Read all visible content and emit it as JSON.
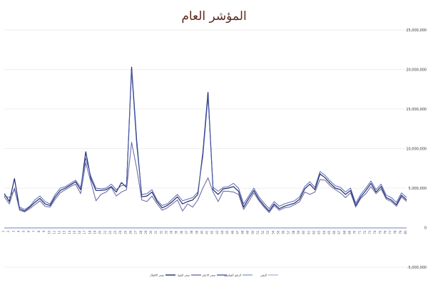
{
  "chart_data": {
    "type": "line",
    "title": "المؤشر العام",
    "xlabel": "",
    "ylabel": "",
    "ylim": [
      -5000000,
      25000000
    ],
    "yticks": [
      25000000,
      20000000,
      15000000,
      10000000,
      5000000,
      0,
      -5000000
    ],
    "ytick_labels": [
      "25,000,000",
      "20,000,000",
      "15,000,000",
      "10,000,000",
      "5,000,000",
      "0",
      "-5,000,000"
    ],
    "grid": true,
    "legend_position": "bottom",
    "colors": {
      "series1": "#1f2a6b",
      "series2": "#6f6fa8",
      "series3": "#4a5db0",
      "series4": "#8fa0cc",
      "series5": "#b8b8d8"
    },
    "x": [
      "1",
      "2",
      "3",
      "4",
      "5",
      "6",
      "7",
      "8",
      "9",
      "10",
      "11",
      "12",
      "13",
      "14",
      "15",
      "16",
      "17",
      "18",
      "19",
      "20",
      "21",
      "22",
      "23",
      "24",
      "25",
      "26",
      "27",
      "28",
      "29",
      "30",
      "31",
      "32",
      "33",
      "34",
      "35",
      "36",
      "37",
      "38",
      "39",
      "40",
      "41",
      "42",
      "43",
      "44",
      "45",
      "46",
      "47",
      "48",
      "49",
      "50",
      "51",
      "52",
      "53",
      "54",
      "55",
      "56",
      "57",
      "58",
      "59",
      "60",
      "61",
      "62",
      "63",
      "64",
      "65",
      "66",
      "67",
      "68",
      "69",
      "70",
      "71",
      "72",
      "73",
      "74",
      "75",
      "76",
      "77",
      "78",
      "79",
      "80"
    ],
    "series": [
      {
        "name": "سعر الاقفال",
        "values": [
          4300000,
          3300000,
          6200000,
          2400000,
          2100000,
          2600000,
          3200000,
          3700000,
          3000000,
          2800000,
          3900000,
          4700000,
          5000000,
          5400000,
          5800000,
          4800000,
          9600000,
          6200000,
          4700000,
          4700000,
          4800000,
          5200000,
          4500000,
          5700000,
          5100000,
          20300000,
          11000000,
          3900000,
          4000000,
          4500000,
          3300000,
          2500000,
          2800000,
          3300000,
          3900000,
          3000000,
          3300000,
          3500000,
          4200000,
          9500000,
          17100000,
          4800000,
          4200000,
          4900000,
          5000000,
          5200000,
          4600000,
          2600000,
          3700000,
          4700000,
          3600000,
          2800000,
          2100000,
          3000000,
          2400000,
          2700000,
          2900000,
          3100000,
          3600000,
          4900000,
          5500000,
          4800000,
          6800000,
          6300000,
          5600000,
          5000000,
          4800000,
          4200000,
          4700000,
          2800000,
          3900000,
          4700000,
          5600000,
          4500000,
          5200000,
          3800000,
          3500000,
          2900000,
          4100000,
          3500000
        ]
      },
      {
        "name": "سعر الفتح",
        "values": [
          3900000,
          3000000,
          5000000,
          2200000,
          2000000,
          2400000,
          2900000,
          3400000,
          2700000,
          2600000,
          3600000,
          4400000,
          4800000,
          5200000,
          5500000,
          4300000,
          8200000,
          5800000,
          3400000,
          4200000,
          4500000,
          5100000,
          4000000,
          4500000,
          4800000,
          10800000,
          7500000,
          3500000,
          3300000,
          4000000,
          3000000,
          2200000,
          2500000,
          3000000,
          3500000,
          2100000,
          3000000,
          2600000,
          3500000,
          5000000,
          6300000,
          4500000,
          3300000,
          4600000,
          4600000,
          4500000,
          4200000,
          2300000,
          3300000,
          4400000,
          3400000,
          2600000,
          1900000,
          2800000,
          2200000,
          2500000,
          2600000,
          2900000,
          3300000,
          4500000,
          4200000,
          4500000,
          6100000,
          6000000,
          5300000,
          4800000,
          4400000,
          3800000,
          4400000,
          2600000,
          3700000,
          4300000,
          5200000,
          4300000,
          4900000,
          3600000,
          3300000,
          2700000,
          3900000,
          3300000
        ]
      },
      {
        "name": "سعر الاعلى",
        "values": [
          4000000,
          3800000,
          4800000,
          2600000,
          2300000,
          2700000,
          3500000,
          4000000,
          3300000,
          3000000,
          4200000,
          5000000,
          5200000,
          5600000,
          6000000,
          5100000,
          8800000,
          6500000,
          5000000,
          4900000,
          5000000,
          5500000,
          4800000,
          5300000,
          5400000,
          19800000,
          10400000,
          4200000,
          4300000,
          4800000,
          3500000,
          2800000,
          3000000,
          3600000,
          4200000,
          3400000,
          3600000,
          3800000,
          4500000,
          9000000,
          16500000,
          5100000,
          4600000,
          5100000,
          5200000,
          5600000,
          5000000,
          3000000,
          4000000,
          5000000,
          3900000,
          3100000,
          2400000,
          3300000,
          2700000,
          3000000,
          3200000,
          3400000,
          3900000,
          5200000,
          5800000,
          5100000,
          7100000,
          6600000,
          5900000,
          5300000,
          5100000,
          4500000,
          5000000,
          3100000,
          4200000,
          5000000,
          5900000,
          4800000,
          5500000,
          4100000,
          3800000,
          3200000,
          4400000,
          3800000
        ]
      },
      {
        "name": "الرقم القياسي",
        "values": [
          -120000,
          -120000,
          -120000,
          -120000,
          -120000,
          -120000,
          -120000,
          -120000,
          -120000,
          -120000,
          -120000,
          -120000,
          -120000,
          -120000,
          -120000,
          -120000,
          -120000,
          -120000,
          -120000,
          -120000,
          -120000,
          -120000,
          -120000,
          -120000,
          -120000,
          -120000,
          -120000,
          -120000,
          -120000,
          -120000,
          -120000,
          -120000,
          -120000,
          -120000,
          -120000,
          -120000,
          -120000,
          -120000,
          -120000,
          -120000,
          -120000,
          -120000,
          -120000,
          -120000,
          -120000,
          -120000,
          -120000,
          -120000,
          -120000,
          -120000,
          -120000,
          -120000,
          -120000,
          -120000,
          -120000,
          -120000,
          -120000,
          -120000,
          -120000,
          -120000,
          -120000,
          -120000,
          -120000,
          -120000,
          -120000,
          -120000,
          -120000,
          -120000,
          -120000,
          -120000,
          -120000,
          -120000,
          -120000,
          -120000,
          -120000,
          -120000,
          -120000,
          -120000,
          -120000,
          -120000
        ]
      },
      {
        "name": "التغير",
        "values": [
          0,
          0,
          0,
          0,
          0,
          0,
          0,
          0,
          0,
          0,
          0,
          0,
          0,
          0,
          0,
          0,
          0,
          0,
          0,
          0,
          0,
          0,
          0,
          0,
          0,
          0,
          0,
          0,
          0,
          0,
          0,
          0,
          0,
          0,
          0,
          0,
          0,
          0,
          0,
          0,
          0,
          0,
          0,
          0,
          0,
          0,
          0,
          0,
          0,
          0,
          0,
          0,
          0,
          0,
          0,
          0,
          0,
          0,
          0,
          0,
          0,
          0,
          0,
          0,
          0,
          0,
          0,
          0,
          0,
          0,
          0,
          0,
          0,
          0,
          0,
          0,
          0,
          0,
          0,
          0
        ]
      }
    ]
  }
}
